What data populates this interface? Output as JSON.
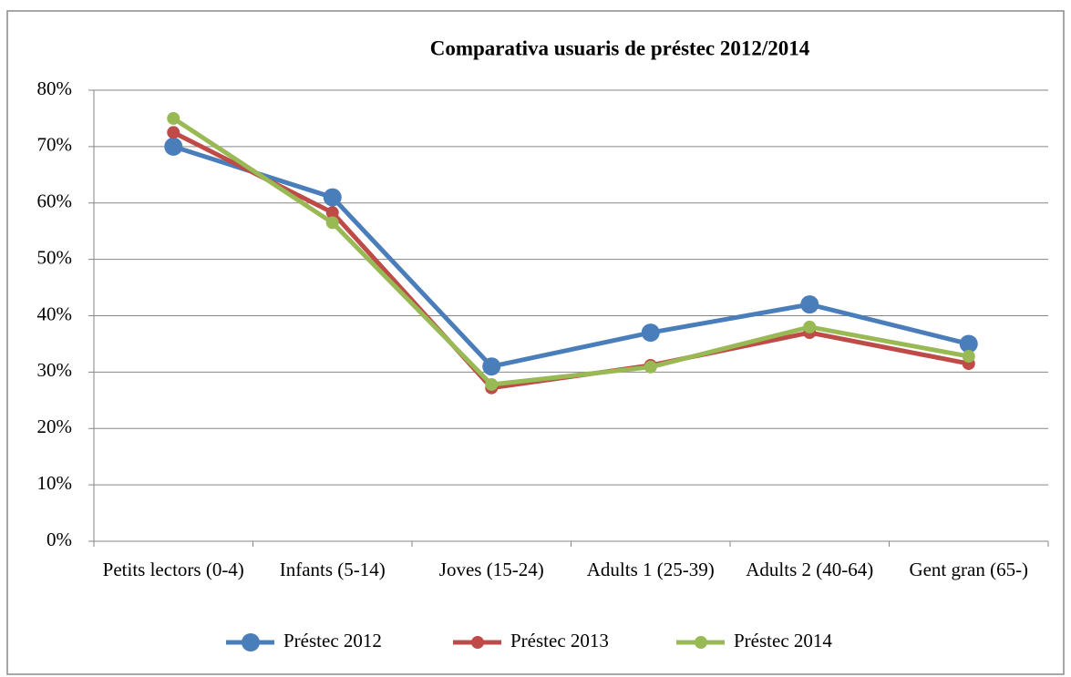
{
  "chart_data": {
    "type": "line",
    "title": "Comparativa usuaris de préstec 2012/2014",
    "categories": [
      "Petits lectors (0-4)",
      "Infants (5-14)",
      "Joves (15-24)",
      "Adults 1 (25-39)",
      "Adults 2 (40-64)",
      "Gent gran (65-)"
    ],
    "series": [
      {
        "name": "Préstec 2012",
        "color": "#4a7ebb",
        "values": [
          70,
          61,
          31,
          37,
          42,
          35
        ]
      },
      {
        "name": "Préstec 2013",
        "color": "#be4b48",
        "values": [
          72.5,
          58.3,
          27.2,
          31.2,
          37,
          31.5
        ]
      },
      {
        "name": "Préstec 2014",
        "color": "#98b954",
        "values": [
          75,
          56.5,
          27.8,
          30.9,
          38,
          32.8
        ]
      }
    ],
    "ylim": [
      0,
      80
    ],
    "yticks": [
      {
        "value": 0,
        "label": "0%"
      },
      {
        "value": 10,
        "label": "10%"
      },
      {
        "value": 20,
        "label": "20%"
      },
      {
        "value": 30,
        "label": "30%"
      },
      {
        "value": 40,
        "label": "40%"
      },
      {
        "value": 50,
        "label": "50%"
      },
      {
        "value": 60,
        "label": "60%"
      },
      {
        "value": 70,
        "label": "70%"
      },
      {
        "value": 80,
        "label": "80%"
      }
    ],
    "grid": true,
    "legend": "bottom"
  }
}
